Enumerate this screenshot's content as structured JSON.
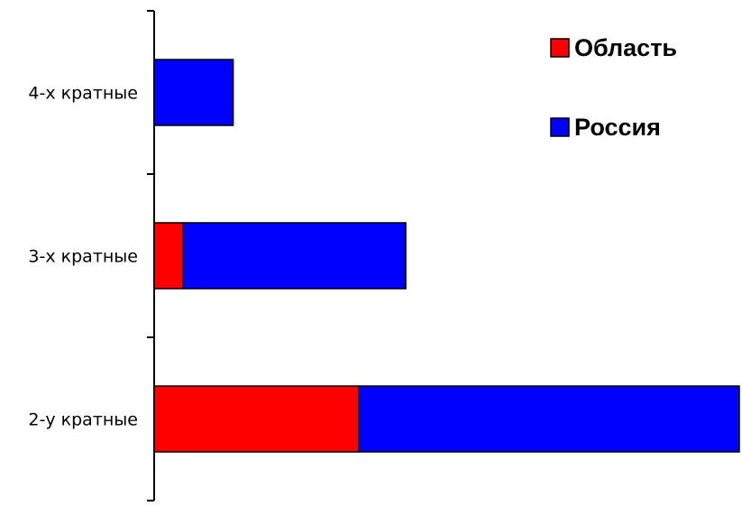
{
  "chart_data": {
    "type": "bar",
    "orientation": "horizontal",
    "stacked": true,
    "categories": [
      "2-у кратные",
      "3-х кратные",
      "4-х кратные"
    ],
    "series": [
      {
        "name": "Область",
        "color": "#ff0000",
        "values": [
          35,
          5,
          0
        ]
      },
      {
        "name": "Россия",
        "color": "#0000ff",
        "values": [
          65,
          38,
          13.5
        ]
      }
    ],
    "xlim": [
      0,
      100
    ],
    "grid": false,
    "legend_position": "top-right"
  }
}
